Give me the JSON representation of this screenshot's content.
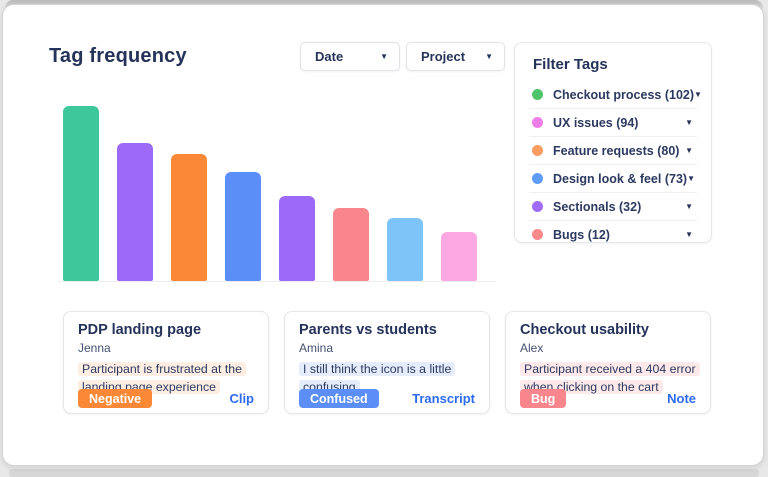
{
  "page": {
    "title": "Tag frequency"
  },
  "colors": {
    "navy_text": "#25335a",
    "link_blue": "#2e6bf0",
    "card_border": "#e6e6ea"
  },
  "toolbar": {
    "dropdowns": [
      {
        "label": "Date"
      },
      {
        "label": "Project"
      }
    ]
  },
  "chart_data": {
    "type": "bar",
    "title": "Tag frequency",
    "categories": [
      "",
      "",
      "",
      "",
      "",
      "",
      "",
      ""
    ],
    "values": [
      175,
      138,
      127,
      109,
      85,
      73,
      63,
      49
    ],
    "unit": "relative height (px), axis unlabeled",
    "colors": [
      "#3dc79b",
      "#9d6af8",
      "#fb8836",
      "#5b8ef7",
      "#9d6af8",
      "#f9868c",
      "#7ec4f8",
      "#fca8e2"
    ],
    "xlabel": "",
    "ylabel": "",
    "grid": false,
    "legend": false,
    "axis_labels_visible": false
  },
  "filter_panel": {
    "title": "Filter Tags",
    "items": [
      {
        "label": "Checkout process",
        "count": 102,
        "display": "Checkout process (102)",
        "color": "#50c46b"
      },
      {
        "label": "UX issues",
        "count": 94,
        "display": "UX issues (94)",
        "color": "#f07ee8"
      },
      {
        "label": "Feature requests",
        "count": 80,
        "display": "Feature requests (80)",
        "color": "#fa9d62"
      },
      {
        "label": "Design look & feel",
        "count": 73,
        "display": "Design look & feel (73)",
        "color": "#5e9cf5"
      },
      {
        "label": "Sectionals",
        "count": 32,
        "display": "Sectionals (32)",
        "color": "#9e6cf9"
      },
      {
        "label": "Bugs",
        "count": 12,
        "display": "Bugs (12)",
        "color": "#f9888b"
      }
    ]
  },
  "cards": [
    {
      "title": "PDP landing page",
      "author": "Jenna",
      "quote": "Participant is frustrated at the landing page experience",
      "quote_highlight": "#fdeee3",
      "badge": {
        "label": "Negative",
        "bg": "#fb8836"
      },
      "link": "Clip"
    },
    {
      "title": "Parents vs students",
      "author": "Amina",
      "quote": "I still think the icon is a little confusing",
      "quote_highlight": "#e5ecfc",
      "badge": {
        "label": "Confused",
        "bg": "#5b8ef7"
      },
      "link": "Transcript"
    },
    {
      "title": "Checkout usability",
      "author": "Alex",
      "quote": "Participant received a 404 error when clicking on the cart",
      "quote_highlight": "#fde9e9",
      "badge": {
        "label": "Bug",
        "bg": "#f9868c"
      },
      "link": "Note"
    }
  ]
}
